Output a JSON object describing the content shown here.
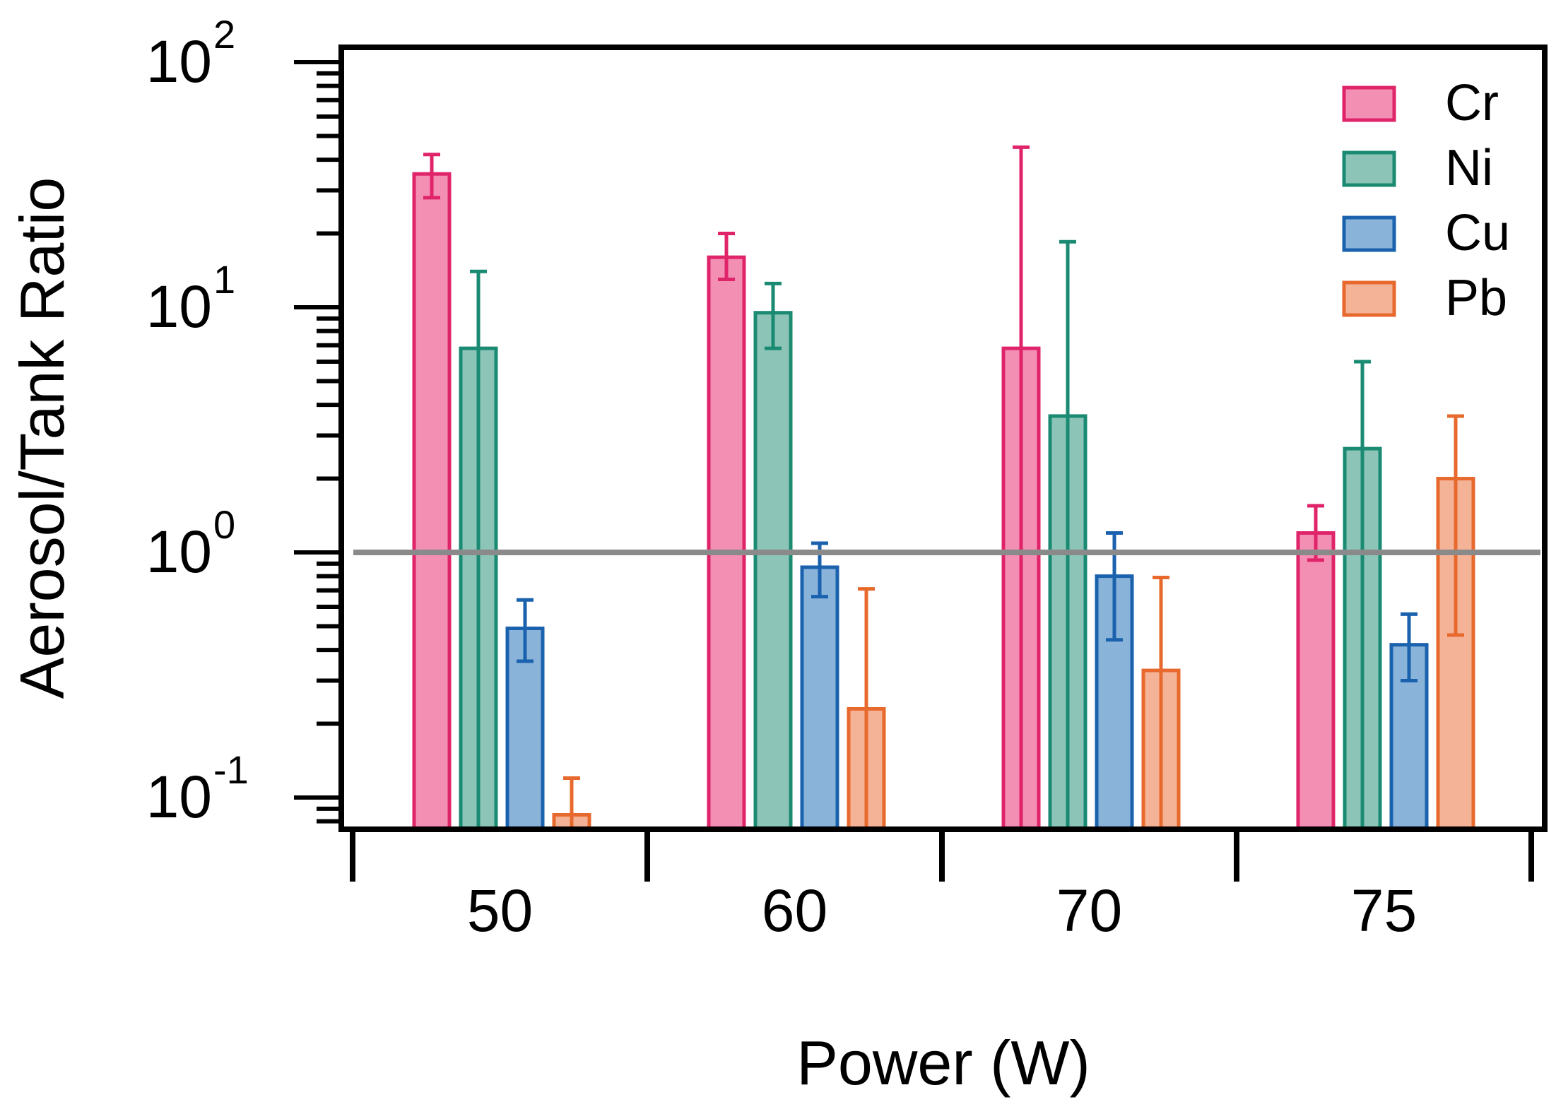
{
  "chart_data": {
    "type": "bar",
    "title": "",
    "xlabel": "Power (W)",
    "ylabel": "Aerosol/Tank Ratio",
    "yscale": "log",
    "ylim": [
      0.075,
      100
    ],
    "yticks": [
      {
        "base": "10",
        "exp": "-1",
        "value": 0.1
      },
      {
        "base": "10",
        "exp": "0",
        "value": 1
      },
      {
        "base": "10",
        "exp": "1",
        "value": 10
      },
      {
        "base": "10",
        "exp": "2",
        "value": 100
      }
    ],
    "categories": [
      "50",
      "60",
      "70",
      "75"
    ],
    "reference_line": {
      "value": 1,
      "color": "#8a8a8a"
    },
    "legend_position": "top-right",
    "series": [
      {
        "name": "Cr",
        "fill": "#f48fb4",
        "stroke": "#e0246a",
        "values": [
          35,
          16,
          6.8,
          1.2
        ],
        "err_low": [
          28,
          13,
          0.07,
          0.93
        ],
        "err_high": [
          42,
          20,
          45,
          1.55
        ]
      },
      {
        "name": "Ni",
        "fill": "#8cc5b8",
        "stroke": "#1a8a72",
        "values": [
          6.8,
          9.5,
          3.6,
          2.65
        ],
        "err_low": [
          0.07,
          6.8,
          0.07,
          0.07
        ],
        "err_high": [
          14,
          12.5,
          18.5,
          6.0
        ]
      },
      {
        "name": "Cu",
        "fill": "#8ab3da",
        "stroke": "#1b62ae",
        "values": [
          0.49,
          0.87,
          0.8,
          0.42
        ],
        "err_low": [
          0.36,
          0.66,
          0.44,
          0.3
        ],
        "err_high": [
          0.64,
          1.09,
          1.2,
          0.56
        ]
      },
      {
        "name": "Pb",
        "fill": "#f4b397",
        "stroke": "#e8692d",
        "values": [
          0.085,
          0.23,
          0.33,
          2.0
        ],
        "err_low": [
          0.07,
          0.07,
          0.07,
          0.46
        ],
        "err_high": [
          0.12,
          0.71,
          0.79,
          3.6
        ]
      }
    ]
  }
}
